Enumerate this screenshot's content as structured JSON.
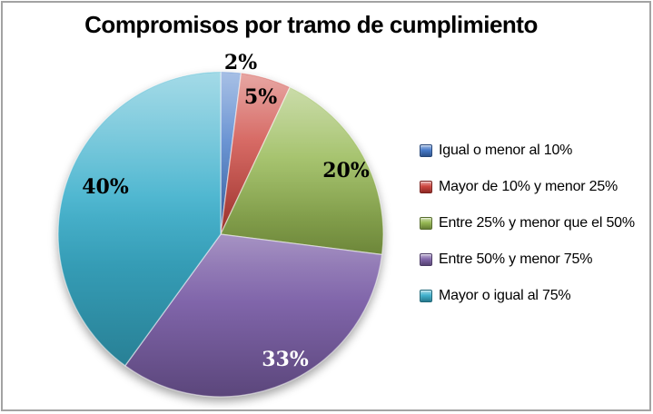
{
  "title": "Compromisos por tramo de cumplimiento",
  "frame": {
    "background": "#ffffff",
    "border_color": "#a3a3a3"
  },
  "chart_data": {
    "type": "pie",
    "title": "Compromisos por tramo de cumplimiento",
    "legend_position": "right",
    "start_angle_deg": 0,
    "direction": "clockwise",
    "units": "percent",
    "series": [
      {
        "label": "Igual o menor al 10%",
        "value": 2,
        "percent_label": "2%",
        "color": "#3d73c6",
        "label_color": "#000000",
        "label_placement": "outside"
      },
      {
        "label": "Mayor de 10% y menor 25%",
        "value": 5,
        "percent_label": "5%",
        "color": "#ca3b34",
        "label_color": "#000000",
        "label_placement": "inside"
      },
      {
        "label": "Entre 25% y menor que el 50%",
        "value": 20,
        "percent_label": "20%",
        "color": "#90b44a",
        "label_color": "#000000",
        "label_placement": "inside"
      },
      {
        "label": "Entre 50% y menor 75%",
        "value": 33,
        "percent_label": "33%",
        "color": "#7b5fa6",
        "label_color": "#ffffff",
        "label_placement": "inside"
      },
      {
        "label": "Mayor o igual al 75%",
        "value": 40,
        "percent_label": "40%",
        "color": "#36adca",
        "label_color": "#000000",
        "label_placement": "inside"
      }
    ]
  }
}
